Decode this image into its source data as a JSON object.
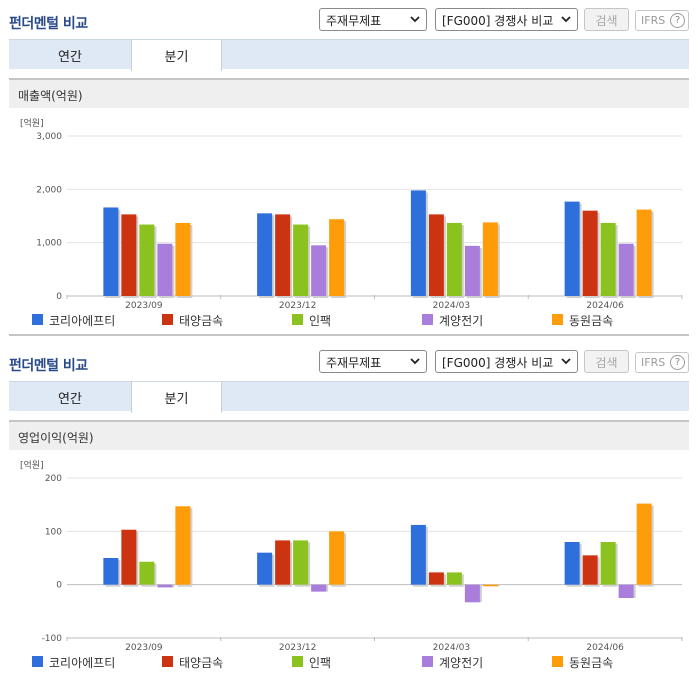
{
  "sections": [
    {
      "title": "펀더멘털 비교",
      "select_statement": "주재무제표",
      "select_compare": "[FG000] 경쟁사 비교",
      "search_label": "검색",
      "ifrs_label": "IFRS",
      "help_label": "?",
      "tabs": [
        {
          "label": "연간"
        },
        {
          "label": "분기"
        }
      ],
      "chart_title": "매출액(억원)",
      "chart_data": {
        "type": "bar",
        "unit_label": "[억원]",
        "categories": [
          "2023/09",
          "2023/12",
          "2024/03",
          "2024/06"
        ],
        "ylim": [
          0,
          3000
        ],
        "yticks": [
          0,
          1000,
          2000,
          3000
        ],
        "ytick_labels": [
          "0",
          "1,000",
          "2,000",
          "3,000"
        ],
        "grid": true,
        "legend_position": "bottom",
        "series": [
          {
            "name": "코리아에프티",
            "color": "#2f6fdc",
            "values": [
              1660,
              1550,
              1980,
              1770
            ]
          },
          {
            "name": "태양금속",
            "color": "#cc3311",
            "values": [
              1530,
              1530,
              1530,
              1600
            ]
          },
          {
            "name": "인팩",
            "color": "#8cc21f",
            "values": [
              1340,
              1340,
              1370,
              1370
            ]
          },
          {
            "name": "계양전기",
            "color": "#a97ddc",
            "values": [
              980,
              950,
              940,
              980
            ]
          },
          {
            "name": "동원금속",
            "color": "#ff9c09",
            "values": [
              1370,
              1440,
              1380,
              1620
            ]
          }
        ]
      }
    },
    {
      "title": "펀더멘털 비교",
      "select_statement": "주재무제표",
      "select_compare": "[FG000] 경쟁사 비교",
      "search_label": "검색",
      "ifrs_label": "IFRS",
      "help_label": "?",
      "tabs": [
        {
          "label": "연간"
        },
        {
          "label": "분기"
        }
      ],
      "chart_title": "영업이익(억원)",
      "chart_data": {
        "type": "bar",
        "unit_label": "[억원]",
        "categories": [
          "2023/09",
          "2023/12",
          "2024/03",
          "2024/06"
        ],
        "ylim": [
          -100,
          200
        ],
        "yticks": [
          -100,
          0,
          100,
          200
        ],
        "ytick_labels": [
          "-100",
          "0",
          "100",
          "200"
        ],
        "grid": true,
        "legend_position": "bottom",
        "series": [
          {
            "name": "코리아에프티",
            "color": "#2f6fdc",
            "values": [
              50,
              60,
              112,
              80
            ]
          },
          {
            "name": "태양금속",
            "color": "#cc3311",
            "values": [
              103,
              83,
              23,
              55
            ]
          },
          {
            "name": "인팩",
            "color": "#8cc21f",
            "values": [
              43,
              83,
              23,
              80
            ]
          },
          {
            "name": "계양전기",
            "color": "#a97ddc",
            "values": [
              -5,
              -13,
              -33,
              -25
            ]
          },
          {
            "name": "동원금속",
            "color": "#ff9c09",
            "values": [
              147,
              100,
              -3,
              152
            ]
          }
        ]
      }
    }
  ]
}
